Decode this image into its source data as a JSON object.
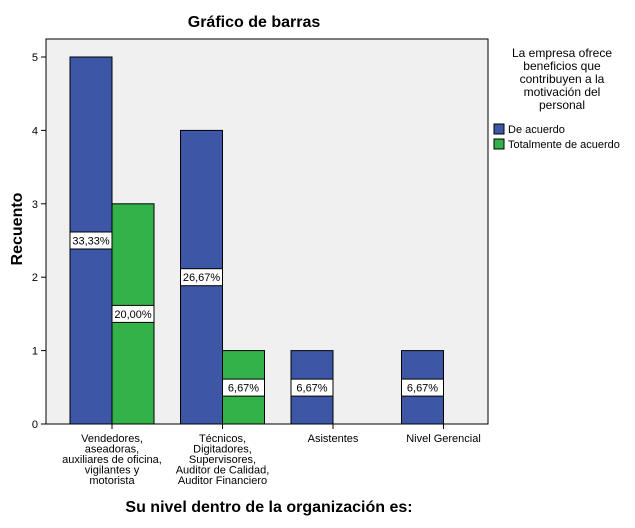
{
  "chart_data": {
    "type": "bar",
    "title": "Gráfico de barras",
    "xlabel": "Su nivel dentro de la organización es:",
    "ylabel": "Recuento",
    "ylim": [
      0,
      5
    ],
    "yticks": [
      0,
      1,
      2,
      3,
      4,
      5
    ],
    "grid": false,
    "legend_position": "right",
    "legend_title": [
      "La empresa ofrece",
      "beneficios que",
      "contribuyen a la",
      "motivación del",
      "personal"
    ],
    "categories": [
      [
        "Vendedores,",
        "aseadoras,",
        "auxiliares de oficina,",
        "vigilantes y",
        "motorista"
      ],
      [
        "Técnicos,",
        "Digitadores,",
        "Supervisores,",
        "Auditor de Calidad,",
        "Auditor Financiero"
      ],
      [
        "Asistentes"
      ],
      [
        "Nivel Gerencial"
      ]
    ],
    "series": [
      {
        "name": "De acuerdo",
        "color": "#3d57a6",
        "values": [
          5,
          4,
          1,
          1
        ],
        "labels": [
          "33,33%",
          "26,67%",
          "6,67%",
          "6,67%"
        ]
      },
      {
        "name": "Totalmente  de acuerdo",
        "color": "#33b24a",
        "values": [
          3,
          1,
          null,
          null
        ],
        "labels": [
          "20,00%",
          "6,67%",
          null,
          null
        ]
      }
    ]
  }
}
